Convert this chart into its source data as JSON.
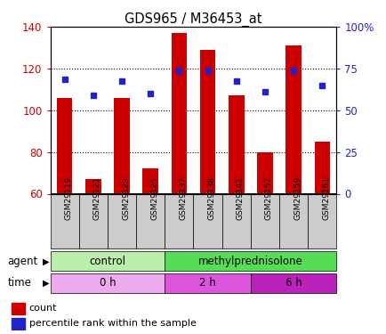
{
  "title": "GDS965 / M36453_at",
  "categories": [
    "GSM29119",
    "GSM29121",
    "GSM29123",
    "GSM29125",
    "GSM29137",
    "GSM29138",
    "GSM29141",
    "GSM29157",
    "GSM29159",
    "GSM29161"
  ],
  "bar_values": [
    106,
    67,
    106,
    72,
    137,
    129,
    107,
    80,
    131,
    85
  ],
  "dot_values": [
    115,
    107,
    114,
    108,
    119,
    119,
    114,
    109,
    119,
    112
  ],
  "ylim_left": [
    60,
    140
  ],
  "ylim_right": [
    0,
    100
  ],
  "yticks_left": [
    60,
    80,
    100,
    120,
    140
  ],
  "yticks_right": [
    0,
    25,
    50,
    75,
    100
  ],
  "yticklabels_right": [
    "0",
    "25",
    "50",
    "75",
    "100%"
  ],
  "bar_color": "#cc0000",
  "dot_color": "#2222cc",
  "agent_labels": [
    {
      "label": "control",
      "start": 0,
      "end": 4,
      "color": "#bbeeaa"
    },
    {
      "label": "methylprednisolone",
      "start": 4,
      "end": 10,
      "color": "#55dd55"
    }
  ],
  "time_labels": [
    {
      "label": "0 h",
      "start": 0,
      "end": 4,
      "color": "#eeaaee"
    },
    {
      "label": "2 h",
      "start": 4,
      "end": 7,
      "color": "#dd55dd"
    },
    {
      "label": "6 h",
      "start": 7,
      "end": 10,
      "color": "#bb22bb"
    }
  ],
  "legend_count_label": "count",
  "legend_pct_label": "percentile rank within the sample",
  "agent_row_label": "agent",
  "time_row_label": "time",
  "grid_yticks": [
    80,
    100,
    120
  ],
  "sample_box_color": "#cccccc",
  "plot_bg": "#ffffff"
}
